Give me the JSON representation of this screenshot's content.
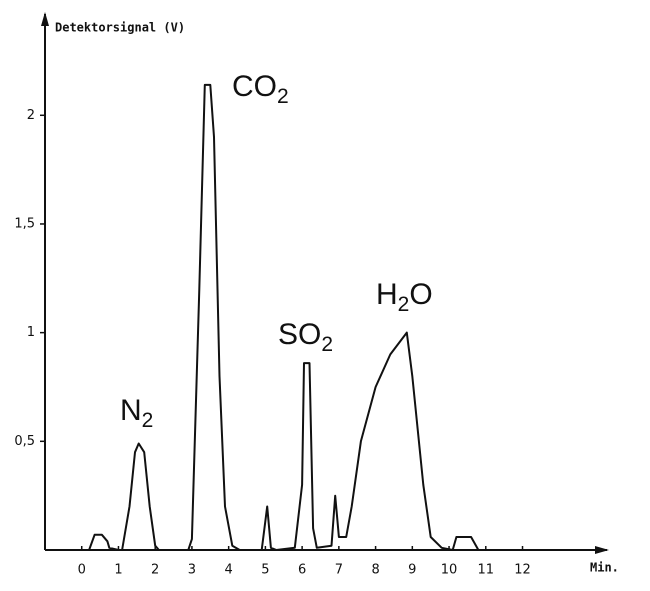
{
  "chart_data": {
    "type": "line",
    "ylabel": "Detektorsignal (V)",
    "xlabel": "Min.",
    "xlim": [
      -1,
      14.3
    ],
    "ylim": [
      0,
      2.42
    ],
    "xticks": [
      0,
      1,
      2,
      3,
      4,
      5,
      6,
      7,
      8,
      9,
      10,
      11,
      12
    ],
    "yticks": [
      {
        "value": 0.5,
        "label": "0,5"
      },
      1,
      {
        "value": 1.5,
        "label": "1,5"
      },
      2
    ],
    "annotations": [
      [
        "N",
        "2"
      ],
      [
        "CO",
        "2"
      ],
      [
        "SO",
        "2"
      ],
      [
        "H",
        "2",
        "O"
      ]
    ],
    "series": [
      {
        "color": "#111111",
        "x": [
          -1,
          0.2,
          0.35,
          0.55,
          0.7,
          0.75,
          1.0,
          1.1,
          1.3,
          1.45,
          1.55,
          1.7,
          1.85,
          2.0,
          2.1,
          2.9,
          3.0,
          3.2,
          3.35,
          3.5,
          3.6,
          3.75,
          3.9,
          4.1,
          4.3,
          4.9,
          5.05,
          5.15,
          5.3,
          5.8,
          6.0,
          6.05,
          6.2,
          6.3,
          6.4,
          6.8,
          6.9,
          7.0,
          7.2,
          7.35,
          7.6,
          8.0,
          8.4,
          8.85,
          9.0,
          9.3,
          9.5,
          9.8,
          10.1,
          10.2,
          10.6,
          10.8,
          11.0
        ],
        "values": [
          0,
          0,
          0.07,
          0.07,
          0.04,
          0.01,
          0,
          0,
          0.2,
          0.45,
          0.49,
          0.45,
          0.2,
          0.02,
          0,
          0,
          0.05,
          1.2,
          2.14,
          2.14,
          1.9,
          0.8,
          0.2,
          0.02,
          0,
          0,
          0.2,
          0.01,
          0,
          0.01,
          0.3,
          0.86,
          0.86,
          0.1,
          0.01,
          0.02,
          0.25,
          0.06,
          0.06,
          0.2,
          0.5,
          0.75,
          0.9,
          1.0,
          0.8,
          0.3,
          0.06,
          0.01,
          0,
          0.06,
          0.06,
          0,
          0
        ]
      }
    ]
  }
}
